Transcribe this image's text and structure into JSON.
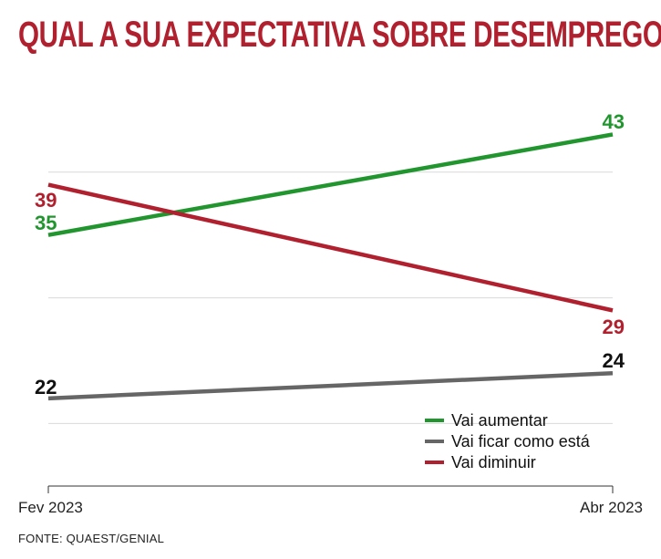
{
  "title": "QUAL A SUA EXPECTATIVA SOBRE DESEMPREGO",
  "source": "FONTE: QUAEST/GENIAL",
  "chart_data": {
    "type": "line",
    "title": "QUAL A SUA EXPECTATIVA SOBRE DESEMPREGO",
    "x": [
      "Fev 2023",
      "Abr 2023"
    ],
    "ylim": [
      12,
      52
    ],
    "gridlines": [
      20,
      30,
      40
    ],
    "series": [
      {
        "key": "aumentar",
        "name": "Vai aumentar",
        "values": [
          35,
          43
        ],
        "color": "#21952e"
      },
      {
        "key": "ficar",
        "name": "Vai ficar como está",
        "values": [
          22,
          24
        ],
        "color": "#666666"
      },
      {
        "key": "diminuir",
        "name": "Vai diminuir",
        "values": [
          39,
          29
        ],
        "color": "#b0202e"
      }
    ],
    "legend_position": "bottom-right"
  }
}
